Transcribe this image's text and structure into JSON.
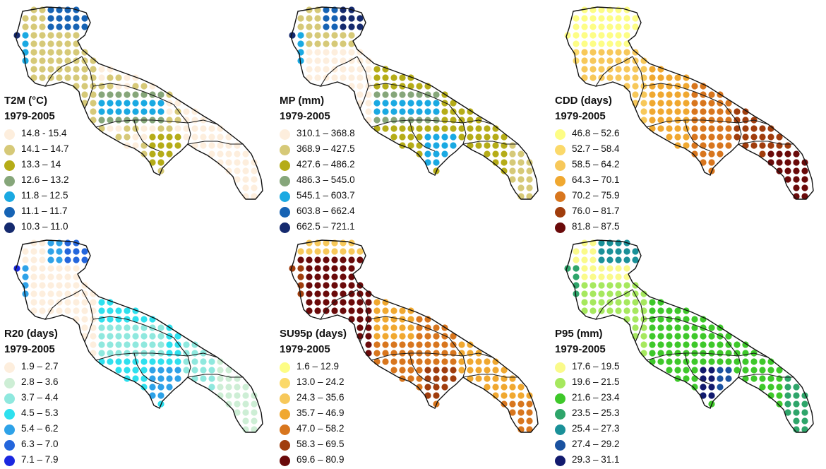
{
  "panels": [
    {
      "id": "t2m",
      "title": "T2M (°C)",
      "period": "1979-2005",
      "classes": [
        {
          "label": "14.8 - 15.4",
          "color": "#fdeedd"
        },
        {
          "label": "14.1 – 14.7",
          "color": "#d6c978"
        },
        {
          "label": "13.3 – 14",
          "color": "#b5ac18"
        },
        {
          "label": "12.6 – 13.2",
          "color": "#86a67a"
        },
        {
          "label": "11.8 – 12.5",
          "color": "#1aa9e2"
        },
        {
          "label": "11.1 – 11.7",
          "color": "#1663b4"
        },
        {
          "label": "10.3 – 11.0",
          "color": "#152a6e"
        }
      ]
    },
    {
      "id": "mp",
      "title": "MP (mm)",
      "period": "1979-2005",
      "classes": [
        {
          "label": "310.1 – 368.8",
          "color": "#fdeedd"
        },
        {
          "label": "368.9 – 427.5",
          "color": "#d6c978"
        },
        {
          "label": "427.6 – 486.2",
          "color": "#b5ac18"
        },
        {
          "label": "486.3 – 545.0",
          "color": "#86a67a"
        },
        {
          "label": "545.1 – 603.7",
          "color": "#1aa9e2"
        },
        {
          "label": "603.8 – 662.4",
          "color": "#1663b4"
        },
        {
          "label": "662.5 – 721.1",
          "color": "#152a6e"
        }
      ]
    },
    {
      "id": "cdd",
      "title": "CDD (days)",
      "period": "1979-2005",
      "classes": [
        {
          "label": "46.8 – 52.6",
          "color": "#fdfd85"
        },
        {
          "label": "52.7 – 58.4",
          "color": "#fbd96a"
        },
        {
          "label": "58.5 – 64.2",
          "color": "#f7c85a"
        },
        {
          "label": "64.3 – 70.1",
          "color": "#f0a830"
        },
        {
          "label": "70.2 – 75.9",
          "color": "#d8761e"
        },
        {
          "label": "76.0 – 81.7",
          "color": "#a03d0d"
        },
        {
          "label": "81.8 – 87.5",
          "color": "#6a0a0a"
        }
      ]
    },
    {
      "id": "r20",
      "title": "R20 (days)",
      "period": "1979-2005",
      "classes": [
        {
          "label": "1.9 – 2.7",
          "color": "#fdeedd"
        },
        {
          "label": "2.8 – 3.6",
          "color": "#cdeed5"
        },
        {
          "label": "3.7 – 4.4",
          "color": "#8fe8de"
        },
        {
          "label": "4.5 – 5.3",
          "color": "#2ee0ee"
        },
        {
          "label": "5.4 – 6.2",
          "color": "#2ea2e8"
        },
        {
          "label": "6.3 – 7.0",
          "color": "#2466dc"
        },
        {
          "label": "7.1 – 7.9",
          "color": "#1a28e0"
        }
      ]
    },
    {
      "id": "su95p",
      "title": "SU95p (days)",
      "period": "1979-2005",
      "classes": [
        {
          "label": "1.6 – 12.9",
          "color": "#fdfd85"
        },
        {
          "label": "13.0 – 24.2",
          "color": "#fbd96a"
        },
        {
          "label": "24.3 – 35.6",
          "color": "#f7c85a"
        },
        {
          "label": "35.7 – 46.9",
          "color": "#f0a830"
        },
        {
          "label": "47.0 – 58.2",
          "color": "#d8761e"
        },
        {
          "label": "58.3 – 69.5",
          "color": "#a03d0d"
        },
        {
          "label": "69.6 – 80.9",
          "color": "#6a0a0a"
        }
      ]
    },
    {
      "id": "p95",
      "title": "P95 (mm)",
      "period": "1979-2005",
      "classes": [
        {
          "label": "17.6 – 19.5",
          "color": "#fafa8a"
        },
        {
          "label": "19.6 – 21.5",
          "color": "#a6e85e"
        },
        {
          "label": "21.6 – 23.4",
          "color": "#3ec82a"
        },
        {
          "label": "23.5 – 25.3",
          "color": "#2ea56a"
        },
        {
          "label": "25.4 – 27.3",
          "color": "#1a9098"
        },
        {
          "label": "27.4 – 29.2",
          "color": "#1a52a0"
        },
        {
          "label": "29.3 – 31.1",
          "color": "#121a6e"
        }
      ]
    }
  ]
}
